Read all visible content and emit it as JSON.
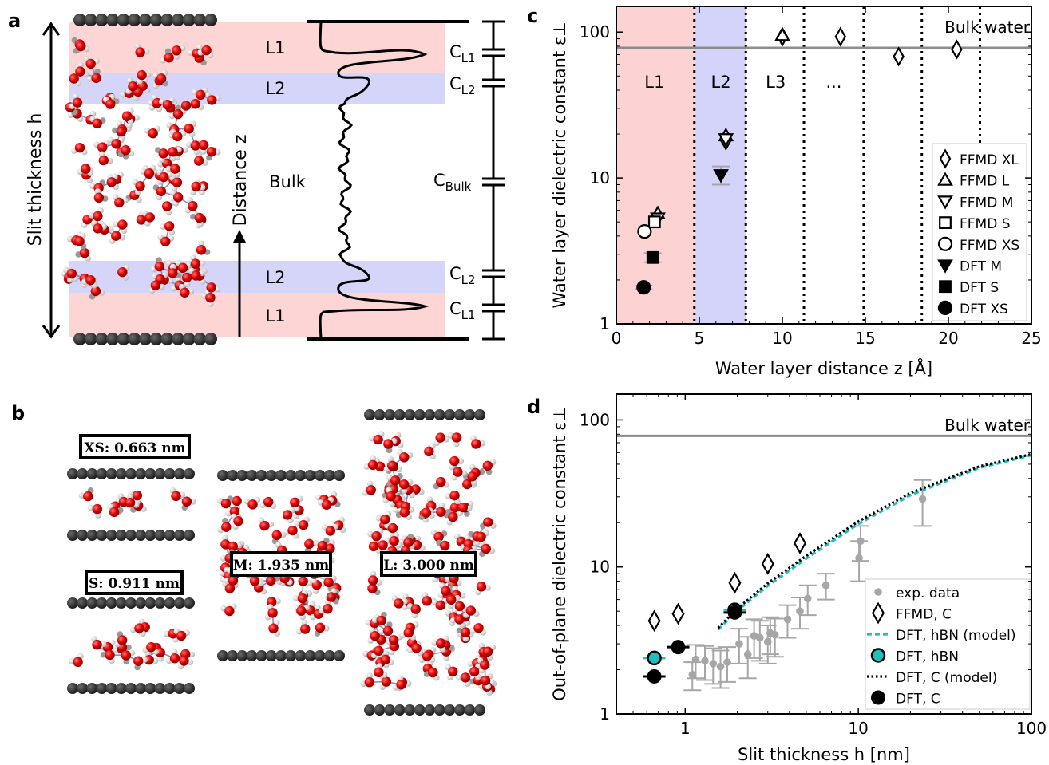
{
  "panels": {
    "a": {
      "letter": "a",
      "slit_label": "Slit thickness h",
      "distance_label": "Distance z",
      "layer_labels": [
        "L1",
        "L2",
        "Bulk",
        "L2",
        "L1"
      ],
      "cap_labels": [
        "C_L1",
        "C_L2",
        "C_Bulk",
        "C_L2",
        "C_L1"
      ]
    },
    "b": {
      "letter": "b",
      "boxes": [
        "XS: 0.663 nm",
        "S: 0.911 nm",
        "M: 1.935 nm",
        "L: 3.000 nm"
      ]
    },
    "c": {
      "letter": "c"
    },
    "d": {
      "letter": "d"
    }
  },
  "chart_data": [
    {
      "type": "scatter",
      "panel": "c",
      "ylabel": "Water layer dielectric constant ε⊥",
      "xlabel": "Water layer distance z [Å]",
      "xlim": [
        0,
        25
      ],
      "ylim": [
        1,
        150
      ],
      "yscale": "log",
      "xticks": [
        "0",
        "5",
        "10",
        "15",
        "20",
        "25"
      ],
      "yticks": [
        "1",
        "10",
        "100"
      ],
      "bulk_line": {
        "label": "Bulk water",
        "value": 78
      },
      "regions": [
        {
          "label": "L1",
          "from": 0,
          "to": 4.7,
          "color": "#fdd2d2"
        },
        {
          "label": "L2",
          "from": 4.7,
          "to": 7.8,
          "color": "#d4d4fa"
        }
      ],
      "region_labels": [
        {
          "label": "L1",
          "x": 2.3
        },
        {
          "label": "L2",
          "x": 6.3
        },
        {
          "label": "L3",
          "x": 9.6
        },
        {
          "label": "...",
          "x": 13.1
        }
      ],
      "dividers": [
        4.7,
        7.8,
        11.3,
        14.9,
        18.4,
        21.9
      ],
      "legend_position": "lower-right",
      "series": [
        {
          "name": "FFMD XL",
          "marker": "diamond",
          "filled": false,
          "x": [
            2.5,
            6.6,
            10.0,
            13.5,
            17.0,
            20.5
          ],
          "y": [
            5.5,
            18.0,
            93,
            93,
            68,
            76
          ]
        },
        {
          "name": "FFMD L",
          "marker": "triangle-up",
          "filled": false,
          "x": [
            2.5,
            6.6,
            10.0
          ],
          "y": [
            5.7,
            19.5,
            95
          ]
        },
        {
          "name": "FFMD M",
          "marker": "triangle-down",
          "filled": false,
          "x": [
            2.5,
            6.6
          ],
          "y": [
            5.3,
            18.5
          ]
        },
        {
          "name": "FFMD S",
          "marker": "square",
          "filled": false,
          "x": [
            2.3
          ],
          "y": [
            5.0
          ]
        },
        {
          "name": "FFMD XS",
          "marker": "circle",
          "filled": false,
          "x": [
            1.7
          ],
          "y": [
            4.3
          ]
        },
        {
          "name": "DFT M",
          "marker": "triangle-down",
          "filled": true,
          "x": [
            6.3
          ],
          "y": [
            10.5
          ],
          "err": [
            1.5
          ]
        },
        {
          "name": "DFT S",
          "marker": "square",
          "filled": true,
          "x": [
            2.2
          ],
          "y": [
            2.85
          ],
          "err": [
            0.2
          ]
        },
        {
          "name": "DFT XS",
          "marker": "circle",
          "filled": true,
          "x": [
            1.65
          ],
          "y": [
            1.78
          ],
          "err": [
            0.05
          ]
        }
      ]
    },
    {
      "type": "scatter",
      "panel": "d",
      "ylabel": "Out-of-plane dielectric constant ε⊥",
      "xlabel": "Slit thickness h [nm]",
      "xlim": [
        0.4,
        100
      ],
      "ylim": [
        1,
        150
      ],
      "xscale": "log",
      "yscale": "log",
      "xticks": [
        "1",
        "10",
        "100"
      ],
      "yticks": [
        "1",
        "10",
        "100"
      ],
      "bulk_line": {
        "label": "Bulk water",
        "value": 78
      },
      "legend_position": "lower-right",
      "series": [
        {
          "name": "exp. data",
          "marker": "circle-small",
          "color": "#a6a6a6",
          "x": [
            1.1,
            1.15,
            1.3,
            1.45,
            1.6,
            1.75,
            2.05,
            2.3,
            2.5,
            2.7,
            3.0,
            3.1,
            3.3,
            3.9,
            4.6,
            5.1,
            6.5,
            10.1,
            10.3,
            23.5
          ],
          "y": [
            1.85,
            2.35,
            2.3,
            2.2,
            2.1,
            2.25,
            3.0,
            2.55,
            3.4,
            3.3,
            3.1,
            3.55,
            3.45,
            4.4,
            5.0,
            6.1,
            7.5,
            11.5,
            15.0,
            29
          ],
          "err": [
            0.4,
            0.6,
            0.6,
            0.6,
            0.6,
            0.6,
            0.8,
            0.8,
            1.0,
            1.0,
            0.9,
            1.0,
            1.0,
            1.1,
            1.2,
            1.4,
            1.5,
            3.5,
            4.0,
            10
          ]
        },
        {
          "name": "FFMD, C",
          "marker": "diamond",
          "filled": false,
          "x": [
            0.663,
            0.911,
            1.935,
            3.0,
            4.6
          ],
          "y": [
            4.3,
            4.8,
            7.8,
            10.5,
            14.5
          ]
        },
        {
          "name": "DFT, hBN (model)",
          "marker": "dashed-line",
          "color": "#1fbfbf",
          "x": [
            1.55,
            2,
            3,
            5,
            10,
            20,
            50,
            100
          ],
          "y": [
            3.75,
            5.05,
            7.45,
            11.4,
            19.6,
            30.8,
            47.2,
            57.5
          ]
        },
        {
          "name": "DFT, hBN",
          "marker": "circle",
          "color": "#1fbfbf",
          "x": [
            0.663,
            1.935
          ],
          "y": [
            2.4,
            5.1
          ]
        },
        {
          "name": "DFT, C (model)",
          "marker": "dotted-line",
          "color": "#000000",
          "x": [
            1.55,
            2,
            3,
            5,
            10,
            20,
            50,
            100
          ],
          "y": [
            3.85,
            5.2,
            7.75,
            11.9,
            20.4,
            31.8,
            48.3,
            58.5
          ]
        },
        {
          "name": "DFT, C",
          "marker": "circle",
          "filled": true,
          "x": [
            0.663,
            0.911,
            1.935
          ],
          "y": [
            1.8,
            2.85,
            4.9
          ]
        }
      ]
    }
  ]
}
